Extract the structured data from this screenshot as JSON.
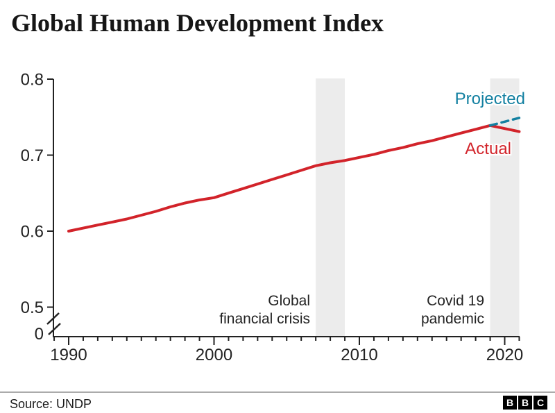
{
  "header": {
    "title": "Global Human Development Index"
  },
  "chart_data": {
    "type": "line",
    "title": "Global Human Development Index",
    "axis_color": "#222222",
    "y_axis": {
      "ticks": [
        {
          "label": "0.8",
          "value": 0.8
        },
        {
          "label": "0.7",
          "value": 0.7
        },
        {
          "label": "0.6",
          "value": 0.6
        },
        {
          "label": "0.5",
          "value": 0.5
        }
      ],
      "zero_label": "0",
      "broken_axis": true,
      "range_shown": [
        0.5,
        0.8
      ]
    },
    "x_axis": {
      "tick_years": [
        1990,
        2000,
        2010,
        2020
      ],
      "tick_labels": [
        "1990",
        "2000",
        "2010",
        "2020"
      ],
      "first_year": 1989,
      "last_year": 2021,
      "minor_ticks_every": 1
    },
    "series": [
      {
        "name": "Actual",
        "color": "#d2232a",
        "style": "solid",
        "start_year": 1990,
        "values": [
          0.6,
          0.604,
          0.608,
          0.612,
          0.616,
          0.621,
          0.626,
          0.632,
          0.637,
          0.641,
          0.644,
          0.65,
          0.656,
          0.662,
          0.668,
          0.674,
          0.68,
          0.686,
          0.69,
          0.693,
          0.697,
          0.701,
          0.706,
          0.71,
          0.715,
          0.719,
          0.724,
          0.729,
          0.734,
          0.739,
          0.735,
          0.731
        ]
      },
      {
        "name": "Projected",
        "color": "#1380a1",
        "style": "dashed",
        "start_year": 2019,
        "values": [
          0.739,
          0.744,
          0.749
        ]
      }
    ],
    "bands": [
      {
        "from": 2007,
        "to": 2009,
        "color": "#ececec",
        "label_line1": "Global",
        "label_line2": "financial crisis"
      },
      {
        "from": 2019,
        "to": 2021,
        "color": "#ececec",
        "label_line1": "Covid 19",
        "label_line2": "pandemic"
      }
    ]
  },
  "footer": {
    "source": "Source: UNDP",
    "logo_letters": [
      "B",
      "B",
      "C"
    ]
  }
}
